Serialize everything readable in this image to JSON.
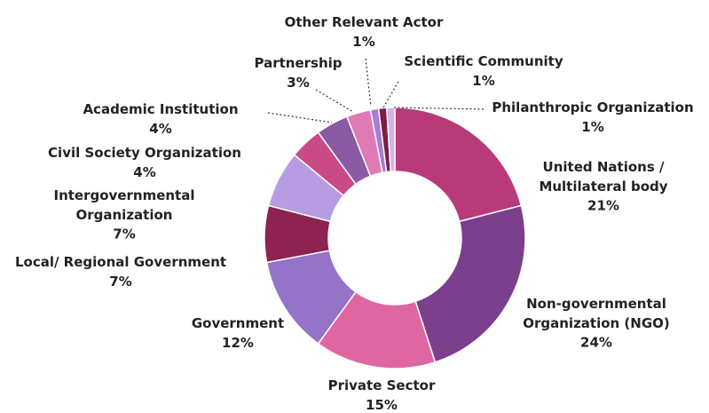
{
  "chart_data": {
    "type": "pie",
    "donut": true,
    "title": "",
    "start": "top, clockwise",
    "slices": [
      {
        "label": "United Nations / Multilateral body",
        "label_lines": [
          "United Nations /",
          "Multilateral body"
        ],
        "value": 21,
        "value_label": "21%",
        "color": "#b83a78"
      },
      {
        "label": "Non-governmental Organization (NGO)",
        "label_lines": [
          "Non-governmental",
          "Organization (NGO)"
        ],
        "value": 24,
        "value_label": "24%",
        "color": "#7b3f8e"
      },
      {
        "label": "Private Sector",
        "label_lines": [
          "Private Sector"
        ],
        "value": 15,
        "value_label": "15%",
        "color": "#e066a2"
      },
      {
        "label": "Government",
        "label_lines": [
          "Government"
        ],
        "value": 12,
        "value_label": "12%",
        "color": "#9473c8"
      },
      {
        "label": "Local/ Regional Government",
        "label_lines": [
          "Local/ Regional Government"
        ],
        "value": 7,
        "value_label": "7%",
        "color": "#8c2352"
      },
      {
        "label": "Intergovernmental Organization",
        "label_lines": [
          "Intergovernmental",
          "Organization"
        ],
        "value": 7,
        "value_label": "7%",
        "color": "#b89ce3"
      },
      {
        "label": "Civil Society Organization",
        "label_lines": [
          "Civil Society Organization"
        ],
        "value": 4,
        "value_label": "4%",
        "color": "#c94a86"
      },
      {
        "label": "Academic Institution",
        "label_lines": [
          "Academic Institution"
        ],
        "value": 4,
        "value_label": "4%",
        "color": "#8a5aa3"
      },
      {
        "label": "Partnership",
        "label_lines": [
          "Partnership"
        ],
        "value": 3,
        "value_label": "3%",
        "color": "#e07ab5"
      },
      {
        "label": "Other Relevant Actor",
        "label_lines": [
          "Other Relevant Actor"
        ],
        "value": 1,
        "value_label": "1%",
        "color": "#a87bd6"
      },
      {
        "label": "Scientific Community",
        "label_lines": [
          "Scientific Community"
        ],
        "value": 1,
        "value_label": "1%",
        "color": "#7a1f47"
      },
      {
        "label": "Philanthropic Organization",
        "label_lines": [
          "Philanthropic Organization"
        ],
        "value": 1,
        "value_label": "1%",
        "color": "#d4b4ee"
      }
    ]
  }
}
